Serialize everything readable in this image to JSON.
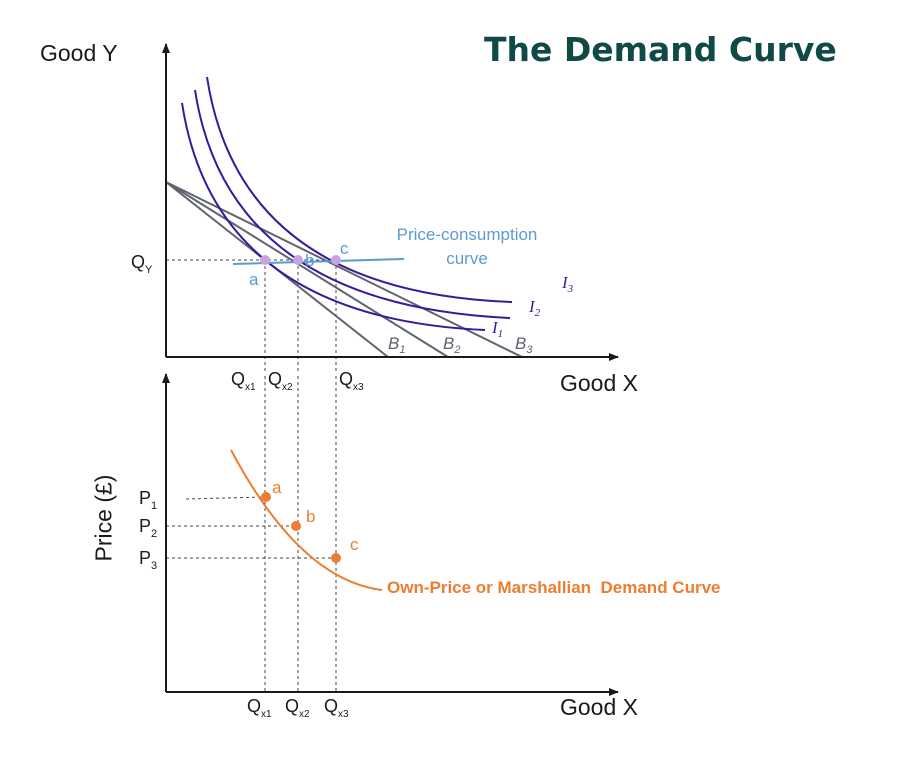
{
  "title": "The Demand Curve",
  "colors": {
    "indifference": "#3a1a9a",
    "budget": "#5e6470",
    "pcc": "#5b9bd5",
    "pcc_point": "#c8a2e0",
    "demand": "#ed7d31",
    "axis": "#1a1a1a",
    "guide": "#444444",
    "title": "#0f4a47"
  },
  "top_panel": {
    "y_axis_label": "Good Y",
    "x_axis_label": "Good X",
    "qy_label": {
      "main": "Q",
      "sub": "Y"
    },
    "indifference_labels": [
      {
        "main": "I",
        "sub": "1"
      },
      {
        "main": "I",
        "sub": "2"
      },
      {
        "main": "I",
        "sub": "3"
      }
    ],
    "budget_labels": [
      {
        "main": "B",
        "sub": "1"
      },
      {
        "main": "B",
        "sub": "2"
      },
      {
        "main": "B",
        "sub": "3"
      }
    ],
    "points": [
      "a",
      "b",
      "c"
    ],
    "pcc_label_line1": "Price-consumption",
    "pcc_label_line2": "curve",
    "qx_labels": [
      {
        "main": "Q",
        "sub": "x1"
      },
      {
        "main": "Q",
        "sub": "x2"
      },
      {
        "main": "Q",
        "sub": "x3"
      }
    ]
  },
  "bottom_panel": {
    "y_axis_label": "Price (£)",
    "x_axis_label": "Good X",
    "price_labels": [
      {
        "main": "P",
        "sub": "1"
      },
      {
        "main": "P",
        "sub": "2"
      },
      {
        "main": "P",
        "sub": "3"
      }
    ],
    "points": [
      "a",
      "b",
      "c"
    ],
    "demand_label": "Own-Price or Marshallian  Demand Curve",
    "qx_labels": [
      {
        "main": "Q",
        "sub": "x1"
      },
      {
        "main": "Q",
        "sub": "x2"
      },
      {
        "main": "Q",
        "sub": "x3"
      }
    ]
  }
}
